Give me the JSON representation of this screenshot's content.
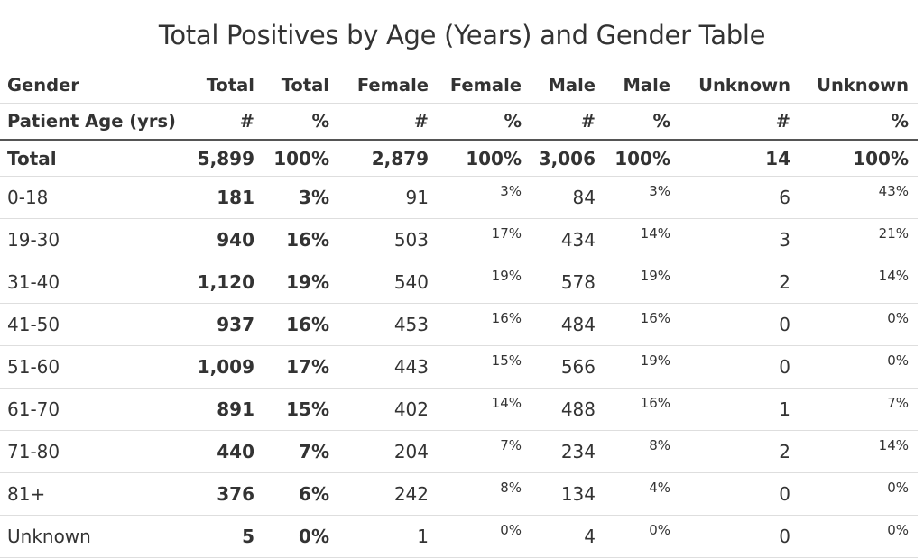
{
  "title": "Total Positives by Age (Years) and Gender Table",
  "headers": {
    "row1": [
      "Gender",
      "Total",
      "Total",
      "Female",
      "Female",
      "Male",
      "Male",
      "Unknown",
      "Unknown"
    ],
    "row2": [
      "Patient Age (yrs)",
      "#",
      "%",
      "#",
      "%",
      "#",
      "%",
      "#",
      "%"
    ]
  },
  "rows": [
    {
      "label": "Total",
      "total_n": "5,899",
      "total_pct": "100%",
      "female_n": "2,879",
      "female_pct": "100%",
      "male_n": "3,006",
      "male_pct": "100%",
      "unknown_n": "14",
      "unknown_pct": "100%"
    },
    {
      "label": "0-18",
      "total_n": "181",
      "total_pct": "3%",
      "female_n": "91",
      "female_pct": "3%",
      "male_n": "84",
      "male_pct": "3%",
      "unknown_n": "6",
      "unknown_pct": "43%"
    },
    {
      "label": "19-30",
      "total_n": "940",
      "total_pct": "16%",
      "female_n": "503",
      "female_pct": "17%",
      "male_n": "434",
      "male_pct": "14%",
      "unknown_n": "3",
      "unknown_pct": "21%"
    },
    {
      "label": "31-40",
      "total_n": "1,120",
      "total_pct": "19%",
      "female_n": "540",
      "female_pct": "19%",
      "male_n": "578",
      "male_pct": "19%",
      "unknown_n": "2",
      "unknown_pct": "14%"
    },
    {
      "label": "41-50",
      "total_n": "937",
      "total_pct": "16%",
      "female_n": "453",
      "female_pct": "16%",
      "male_n": "484",
      "male_pct": "16%",
      "unknown_n": "0",
      "unknown_pct": "0%"
    },
    {
      "label": "51-60",
      "total_n": "1,009",
      "total_pct": "17%",
      "female_n": "443",
      "female_pct": "15%",
      "male_n": "566",
      "male_pct": "19%",
      "unknown_n": "0",
      "unknown_pct": "0%"
    },
    {
      "label": "61-70",
      "total_n": "891",
      "total_pct": "15%",
      "female_n": "402",
      "female_pct": "14%",
      "male_n": "488",
      "male_pct": "16%",
      "unknown_n": "1",
      "unknown_pct": "7%"
    },
    {
      "label": "71-80",
      "total_n": "440",
      "total_pct": "7%",
      "female_n": "204",
      "female_pct": "7%",
      "male_n": "234",
      "male_pct": "8%",
      "unknown_n": "2",
      "unknown_pct": "14%"
    },
    {
      "label": "81+",
      "total_n": "376",
      "total_pct": "6%",
      "female_n": "242",
      "female_pct": "8%",
      "male_n": "134",
      "male_pct": "4%",
      "unknown_n": "0",
      "unknown_pct": "0%"
    },
    {
      "label": "Unknown",
      "total_n": "5",
      "total_pct": "0%",
      "female_n": "1",
      "female_pct": "0%",
      "male_n": "4",
      "male_pct": "0%",
      "unknown_n": "0",
      "unknown_pct": "0%"
    }
  ]
}
